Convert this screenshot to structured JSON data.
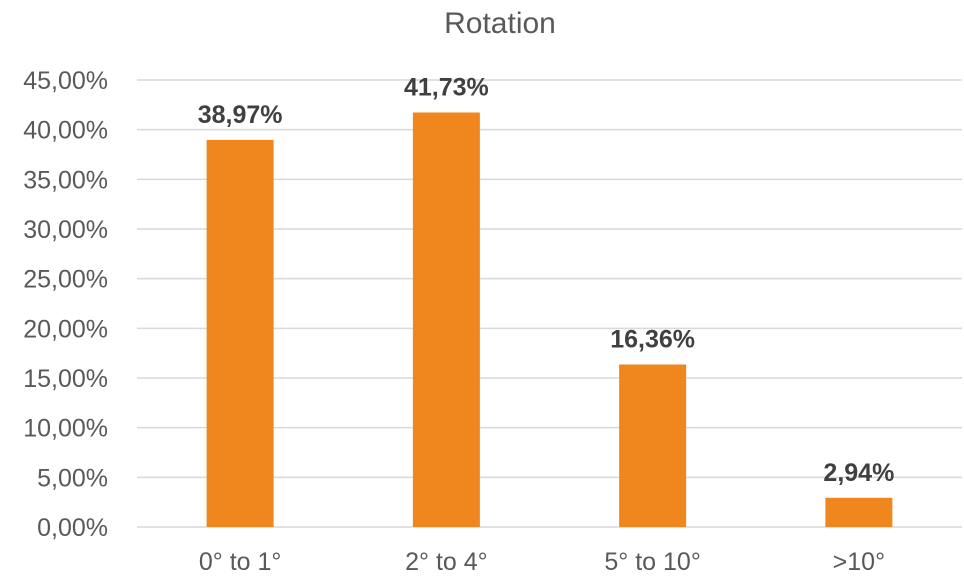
{
  "chart_data": {
    "type": "bar",
    "title": "Rotation",
    "xlabel": "",
    "ylabel": "",
    "categories": [
      "0° to 1°",
      "2° to 4°",
      "5° to 10°",
      ">10°"
    ],
    "series": [
      {
        "values": [
          38.97,
          41.73,
          16.36,
          2.94
        ],
        "data_labels": [
          "38,97%",
          "41,73%",
          "16,36%",
          "2,94%"
        ],
        "color": "#f0871e"
      }
    ],
    "ylim": [
      0,
      45
    ],
    "y_ticks": [
      0,
      5,
      10,
      15,
      20,
      25,
      30,
      35,
      40,
      45
    ],
    "y_tick_labels": [
      "0,00%",
      "5,00%",
      "10,00%",
      "15,00%",
      "20,00%",
      "25,00%",
      "30,00%",
      "35,00%",
      "40,00%",
      "45,00%"
    ],
    "grid": true,
    "legend": "none"
  }
}
